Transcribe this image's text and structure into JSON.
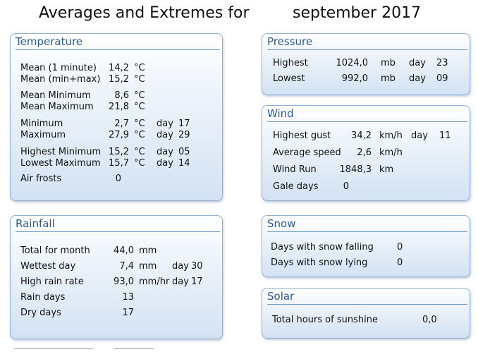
{
  "header": {
    "title": "Averages and Extremes for",
    "period": "september 2017"
  },
  "temperature": {
    "title": "Temperature",
    "rows": [
      {
        "label": "Mean (1 minute)",
        "value": "14,2",
        "unit": "°C",
        "day_label": "",
        "day": ""
      },
      {
        "label": "Mean (min+max)",
        "value": "15,2",
        "unit": "°C",
        "day_label": "",
        "day": ""
      },
      {
        "label": "Mean Minimum",
        "value": "8,6",
        "unit": "°C",
        "day_label": "",
        "day": ""
      },
      {
        "label": "Mean Maximum",
        "value": "21,8",
        "unit": "°C",
        "day_label": "",
        "day": ""
      },
      {
        "label": "Minimum",
        "value": "2,7",
        "unit": "°C",
        "day_label": "day",
        "day": "17"
      },
      {
        "label": "Maximum",
        "value": "27,9",
        "unit": "°C",
        "day_label": "day",
        "day": "29"
      },
      {
        "label": "Highest Minimum",
        "value": "15,2",
        "unit": "°C",
        "day_label": "day",
        "day": "05"
      },
      {
        "label": "Lowest Maximum",
        "value": "15,7",
        "unit": "°C",
        "day_label": "day",
        "day": "14"
      },
      {
        "label": "Air frosts",
        "value": "0",
        "unit": "",
        "day_label": "",
        "day": ""
      }
    ]
  },
  "pressure": {
    "title": "Pressure",
    "rows": [
      {
        "label": "Highest",
        "value": "1024,0",
        "unit": "mb",
        "day_label": "day",
        "day": "23"
      },
      {
        "label": "Lowest",
        "value": "992,0",
        "unit": "mb",
        "day_label": "day",
        "day": "09"
      }
    ]
  },
  "wind": {
    "title": "Wind",
    "rows": [
      {
        "label": "Highest gust",
        "value": "34,2",
        "unit": "km/h",
        "day_label": "day",
        "day": "11"
      },
      {
        "label": "Average speed",
        "value": "2,6",
        "unit": "km/h",
        "day_label": "",
        "day": ""
      },
      {
        "label": "Wind Run",
        "value": "1848,3",
        "unit": "km",
        "day_label": "",
        "day": ""
      },
      {
        "label": "Gale days",
        "value": "0",
        "unit": "",
        "day_label": "",
        "day": ""
      }
    ]
  },
  "rainfall": {
    "title": "Rainfall",
    "rows": [
      {
        "label": "Total for month",
        "value": "44,0",
        "unit": "mm",
        "day_label": "",
        "day": ""
      },
      {
        "label": "Wettest day",
        "value": "7,4",
        "unit": "mm",
        "day_label": "day",
        "day": "30"
      },
      {
        "label": "High rain rate",
        "value": "93,0",
        "unit": "mm/hr",
        "day_label": "day",
        "day": "17"
      },
      {
        "label": "Rain days",
        "value": "13",
        "unit": "",
        "day_label": "",
        "day": ""
      },
      {
        "label": "Dry days",
        "value": "17",
        "unit": "",
        "day_label": "",
        "day": ""
      }
    ]
  },
  "snow": {
    "title": "Snow",
    "rows": [
      {
        "label": "Days with snow falling",
        "value": "0"
      },
      {
        "label": "Days with snow lying",
        "value": "0"
      }
    ]
  },
  "solar": {
    "title": "Solar",
    "rows": [
      {
        "label": "Total hours of sunshine",
        "value": "0,0"
      }
    ]
  }
}
